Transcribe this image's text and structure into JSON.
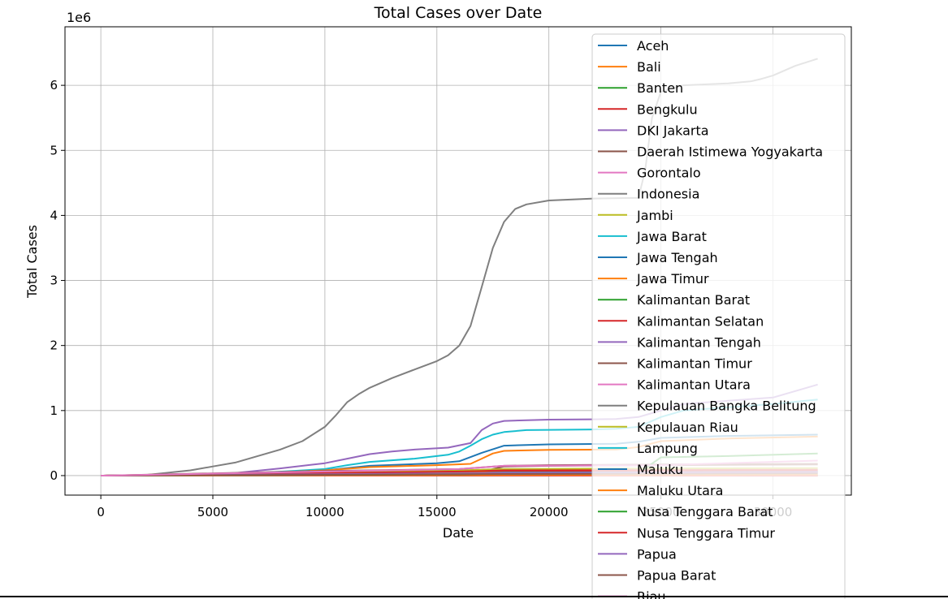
{
  "chart_data": {
    "type": "line",
    "title": "Total Cases over Date",
    "xlabel": "Date",
    "ylabel": "Total Cases",
    "y_multiplier_label": "1e6",
    "xlim": [
      -1600,
      33500
    ],
    "ylim": [
      -300000,
      6900000
    ],
    "x_ticks": [
      0,
      5000,
      10000,
      15000,
      20000,
      25000,
      30000
    ],
    "x_tick_labels": [
      "0",
      "5000",
      "10000",
      "15000",
      "20000",
      "25000",
      "30000"
    ],
    "y_ticks": [
      0,
      1000000,
      2000000,
      3000000,
      4000000,
      5000000,
      6000000
    ],
    "y_tick_labels": [
      "0",
      "1",
      "2",
      "3",
      "4",
      "5",
      "6"
    ],
    "grid": true,
    "legend_position": "upper right",
    "colors": [
      "#1f77b4",
      "#ff7f0e",
      "#2ca02c",
      "#d62728",
      "#9467bd",
      "#8c564b",
      "#e377c2",
      "#7f7f7f",
      "#bcbd22",
      "#17becf"
    ],
    "series": [
      {
        "name": "Aceh",
        "color": "#1f77b4",
        "x": [
          0,
          32000
        ],
        "y": [
          0,
          0
        ]
      },
      {
        "name": "Bali",
        "color": "#ff7f0e",
        "x": [
          0,
          32000
        ],
        "y": [
          0,
          0
        ]
      },
      {
        "name": "Banten",
        "color": "#2ca02c",
        "x": [
          0,
          32000
        ],
        "y": [
          0,
          0
        ]
      },
      {
        "name": "Bengkulu",
        "color": "#d62728",
        "x": [
          0,
          32000
        ],
        "y": [
          0,
          0
        ]
      },
      {
        "name": "DKI Jakarta",
        "color": "#9467bd",
        "x": [
          0,
          3000,
          6000,
          8000,
          10000,
          11000,
          12000,
          13000,
          14000,
          15500,
          16500,
          17000,
          17500,
          18000,
          20000,
          22000,
          23000,
          24000,
          25000,
          26000,
          28000,
          30000,
          31000,
          32000
        ],
        "y": [
          0,
          5000,
          40000,
          110000,
          190000,
          260000,
          330000,
          370000,
          400000,
          430000,
          500000,
          700000,
          800000,
          840000,
          860000,
          865000,
          870000,
          900000,
          1000000,
          1100000,
          1150000,
          1200000,
          1300000,
          1400000
        ]
      },
      {
        "name": "Daerah Istimewa Yogyakarta",
        "color": "#8c564b",
        "x": [
          0,
          16000,
          17000,
          18000,
          20000,
          25000,
          32000
        ],
        "y": [
          0,
          20000,
          60000,
          140000,
          150000,
          160000,
          170000
        ]
      },
      {
        "name": "Gorontalo",
        "color": "#e377c2",
        "x": [
          0,
          32000
        ],
        "y": [
          0,
          12000
        ]
      },
      {
        "name": "Indonesia",
        "color": "#7f7f7f",
        "x": [
          0,
          2000,
          4000,
          5000,
          6000,
          7000,
          8000,
          9000,
          10000,
          10500,
          11000,
          11500,
          12000,
          13000,
          14000,
          15000,
          15500,
          16000,
          16500,
          17000,
          17500,
          18000,
          18500,
          19000,
          20000,
          22000,
          24000,
          24300,
          24600,
          25000,
          26000,
          28000,
          29000,
          29500,
          30000,
          31000,
          32000
        ],
        "y": [
          0,
          10000,
          80000,
          140000,
          200000,
          300000,
          400000,
          530000,
          750000,
          930000,
          1130000,
          1250000,
          1350000,
          1500000,
          1630000,
          1760000,
          1850000,
          2000000,
          2300000,
          2900000,
          3500000,
          3900000,
          4100000,
          4170000,
          4230000,
          4260000,
          4270000,
          4700000,
          5500000,
          5900000,
          6000000,
          6030000,
          6060000,
          6100000,
          6150000,
          6300000,
          6410000
        ]
      },
      {
        "name": "Jambi",
        "color": "#bcbd22",
        "x": [
          0,
          10000,
          16000,
          18000,
          25000,
          32000
        ],
        "y": [
          0,
          60000,
          80000,
          100000,
          110000,
          115000
        ]
      },
      {
        "name": "Jawa Barat",
        "color": "#17becf",
        "x": [
          0,
          5000,
          8000,
          10000,
          11000,
          12000,
          14000,
          15500,
          16000,
          16500,
          17000,
          17500,
          18000,
          19000,
          22000,
          23000,
          24000,
          25000,
          26000,
          30000,
          32000
        ],
        "y": [
          0,
          10000,
          60000,
          100000,
          160000,
          210000,
          260000,
          320000,
          370000,
          460000,
          560000,
          630000,
          670000,
          700000,
          710000,
          720000,
          750000,
          900000,
          1000000,
          1100000,
          1170000
        ]
      },
      {
        "name": "Jawa Tengah",
        "color": "#1f77b4",
        "x": [
          0,
          6000,
          10000,
          12000,
          15000,
          16000,
          17000,
          18000,
          20000,
          23000,
          24000,
          25000,
          28000,
          32000
        ],
        "y": [
          0,
          20000,
          80000,
          150000,
          190000,
          220000,
          350000,
          460000,
          480000,
          490000,
          520000,
          580000,
          610000,
          630000
        ]
      },
      {
        "name": "Jawa Timur",
        "color": "#ff7f0e",
        "x": [
          0,
          6000,
          10000,
          12000,
          15000,
          16500,
          17000,
          17500,
          18000,
          20000,
          23000,
          24000,
          25000,
          28000,
          32000
        ],
        "y": [
          0,
          25000,
          80000,
          130000,
          160000,
          180000,
          260000,
          340000,
          380000,
          395000,
          400000,
          440000,
          530000,
          570000,
          600000
        ]
      },
      {
        "name": "Kalimantan Barat",
        "color": "#2ca02c",
        "x": [
          0,
          16000,
          18000,
          25000,
          32000
        ],
        "y": [
          0,
          30000,
          45000,
          50000,
          55000
        ]
      },
      {
        "name": "Kalimantan Selatan",
        "color": "#d62728",
        "x": [
          0,
          10000,
          16000,
          18000,
          25000,
          32000
        ],
        "y": [
          0,
          30000,
          60000,
          80000,
          85000,
          90000
        ]
      },
      {
        "name": "Kalimantan Tengah",
        "color": "#9467bd",
        "x": [
          0,
          16000,
          18000,
          25000,
          32000
        ],
        "y": [
          0,
          30000,
          50000,
          55000,
          60000
        ]
      },
      {
        "name": "Kalimantan Timur",
        "color": "#8c564b",
        "x": [
          0,
          10000,
          16000,
          18000,
          20000,
          25000,
          32000
        ],
        "y": [
          0,
          70000,
          100000,
          150000,
          160000,
          170000,
          180000
        ]
      },
      {
        "name": "Kalimantan Utara",
        "color": "#e377c2",
        "x": [
          0,
          18000,
          32000
        ],
        "y": [
          0,
          30000,
          40000
        ]
      },
      {
        "name": "Kepulauan Bangka Belitung",
        "color": "#7f7f7f",
        "x": [
          0,
          18000,
          32000
        ],
        "y": [
          0,
          50000,
          60000
        ]
      },
      {
        "name": "Kepulauan Riau",
        "color": "#bcbd22",
        "x": [
          0,
          16000,
          18000,
          25000,
          32000
        ],
        "y": [
          0,
          50000,
          65000,
          70000,
          75000
        ]
      },
      {
        "name": "Lampung",
        "color": "#17becf",
        "x": [
          0,
          16000,
          18000,
          25000,
          32000
        ],
        "y": [
          0,
          20000,
          50000,
          55000,
          60000
        ]
      },
      {
        "name": "Maluku",
        "color": "#1f77b4",
        "x": [
          0,
          32000
        ],
        "y": [
          0,
          20000
        ]
      },
      {
        "name": "Maluku Utara",
        "color": "#ff7f0e",
        "x": [
          0,
          32000
        ],
        "y": [
          0,
          15000
        ]
      },
      {
        "name": "Nusa Tenggara Barat",
        "color": "#2ca02c",
        "x": [
          0,
          16000,
          18000,
          24000,
          25000,
          28000,
          32000
        ],
        "y": [
          0,
          20000,
          30000,
          40000,
          280000,
          300000,
          340000
        ]
      },
      {
        "name": "Nusa Tenggara Timur",
        "color": "#d62728",
        "x": [
          0,
          18000,
          32000
        ],
        "y": [
          0,
          70000,
          80000
        ]
      },
      {
        "name": "Papua",
        "color": "#9467bd",
        "x": [
          0,
          18000,
          25000,
          32000
        ],
        "y": [
          0,
          40000,
          50000,
          55000
        ]
      },
      {
        "name": "Papua Barat",
        "color": "#8c564b",
        "x": [
          0,
          18000,
          25000,
          32000
        ],
        "y": [
          0,
          25000,
          30000,
          35000
        ]
      },
      {
        "name": "Riau",
        "color": "#e377c2",
        "x": [
          0,
          16000,
          18000,
          25000,
          32000
        ],
        "y": [
          0,
          100000,
          150000,
          160000,
          230000
        ]
      }
    ]
  }
}
